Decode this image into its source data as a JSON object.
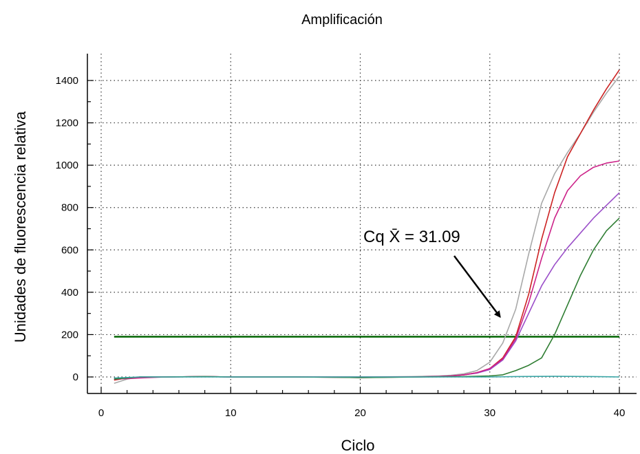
{
  "chart_data": {
    "type": "line",
    "title": "Amplificación",
    "xlabel": "Ciclo",
    "ylabel": "Unidades de fluorescencia relativa",
    "xlim": [
      0,
      40
    ],
    "ylim": [
      -60,
      1500
    ],
    "x_ticks": [
      0,
      10,
      20,
      30,
      40
    ],
    "y_ticks": [
      0,
      200,
      400,
      600,
      800,
      1000,
      1200,
      1400
    ],
    "grid": true,
    "legend": "none",
    "threshold": {
      "value": 190,
      "x_range": [
        1,
        40
      ],
      "color": "#006400"
    },
    "annotation": {
      "text": "Cq X̄ = 31.09",
      "arrow_from": [
        27,
        580
      ],
      "arrow_to": [
        31,
        310
      ]
    },
    "series": [
      {
        "color": "#a8a8a8",
        "x": [
          1,
          2,
          3,
          5,
          8,
          10,
          15,
          20,
          24,
          26,
          27,
          28,
          29,
          30,
          31,
          32,
          33,
          34,
          35,
          36,
          37,
          38,
          39,
          40
        ],
        "y": [
          -30,
          -10,
          0,
          0,
          2,
          0,
          0,
          0,
          2,
          5,
          8,
          15,
          30,
          70,
          160,
          320,
          580,
          820,
          960,
          1060,
          1150,
          1250,
          1340,
          1420
        ]
      },
      {
        "color": "#cc2222",
        "x": [
          1,
          2,
          3,
          5,
          8,
          10,
          15,
          20,
          24,
          26,
          27,
          28,
          29,
          30,
          31,
          32,
          33,
          34,
          35,
          36,
          37,
          38,
          39,
          40
        ],
        "y": [
          -15,
          -5,
          0,
          0,
          2,
          0,
          0,
          0,
          0,
          2,
          5,
          10,
          20,
          40,
          90,
          190,
          390,
          650,
          870,
          1040,
          1150,
          1260,
          1360,
          1450
        ]
      },
      {
        "color": "#9b4fc9",
        "x": [
          1,
          2,
          3,
          5,
          8,
          10,
          15,
          20,
          24,
          26,
          27,
          28,
          29,
          30,
          31,
          32,
          33,
          34,
          35,
          36,
          37,
          38,
          39,
          40
        ],
        "y": [
          -10,
          -5,
          0,
          0,
          2,
          0,
          0,
          0,
          0,
          2,
          5,
          10,
          18,
          35,
          80,
          170,
          300,
          430,
          530,
          610,
          680,
          750,
          810,
          870
        ]
      },
      {
        "color": "#cc2288",
        "x": [
          1,
          2,
          3,
          5,
          8,
          10,
          15,
          20,
          24,
          26,
          27,
          28,
          29,
          30,
          31,
          32,
          33,
          34,
          35,
          36,
          37,
          38,
          39,
          40
        ],
        "y": [
          -10,
          -8,
          -5,
          0,
          2,
          0,
          0,
          -3,
          0,
          2,
          5,
          10,
          20,
          40,
          85,
          180,
          350,
          560,
          750,
          880,
          950,
          990,
          1010,
          1020
        ]
      },
      {
        "color": "#2e7d32",
        "x": [
          1,
          2,
          3,
          5,
          8,
          10,
          15,
          20,
          25,
          28,
          30,
          31,
          32,
          33,
          34,
          35,
          36,
          37,
          38,
          39,
          40
        ],
        "y": [
          -10,
          -5,
          0,
          0,
          2,
          0,
          0,
          -3,
          0,
          2,
          5,
          10,
          30,
          55,
          90,
          200,
          340,
          480,
          600,
          690,
          750
        ]
      },
      {
        "color": "#3aa6a6",
        "x": [
          1,
          3,
          5,
          10,
          15,
          20,
          25,
          30,
          32,
          35,
          38,
          40
        ],
        "y": [
          -5,
          0,
          0,
          0,
          0,
          0,
          0,
          0,
          2,
          3,
          2,
          0
        ]
      }
    ]
  }
}
